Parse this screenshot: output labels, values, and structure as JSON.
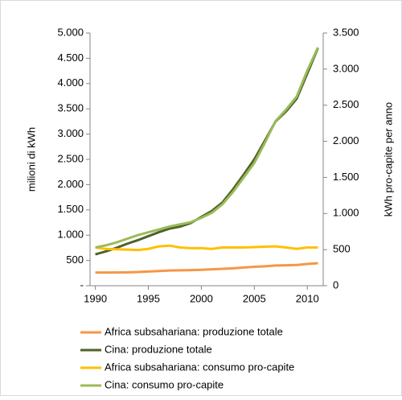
{
  "chart_data": {
    "type": "line",
    "x": [
      1990,
      1991,
      1992,
      1993,
      1994,
      1995,
      1996,
      1997,
      1998,
      1999,
      2000,
      2001,
      2002,
      2003,
      2004,
      2005,
      2006,
      2007,
      2008,
      2009,
      2010,
      2011
    ],
    "xlim": [
      1989.5,
      2011.5
    ],
    "xticks": [
      1990,
      1995,
      2000,
      2005,
      2010
    ],
    "ylabel": "milioni di kWh",
    "y2label": "kWh pro-capite per anno",
    "ylim": [
      0,
      5000
    ],
    "yticks": [
      {
        "value": 0,
        "label": "-"
      },
      500,
      {
        "value": 1000,
        "label": "1.000"
      },
      {
        "value": 1500,
        "label": "1.500"
      },
      {
        "value": 2000,
        "label": "2.000"
      },
      {
        "value": 2500,
        "label": "2.500"
      },
      {
        "value": 3000,
        "label": "3.000"
      },
      {
        "value": 3500,
        "label": "3.500"
      },
      {
        "value": 4000,
        "label": "4.000"
      },
      {
        "value": 4500,
        "label": "4.500"
      },
      {
        "value": 5000,
        "label": "5.000"
      }
    ],
    "y2lim": [
      0,
      3500
    ],
    "y2ticks": [
      0,
      500,
      {
        "value": 1000,
        "label": "1.000"
      },
      {
        "value": 1500,
        "label": "1.500"
      },
      {
        "value": 2000,
        "label": "2.000"
      },
      {
        "value": 2500,
        "label": "2.500"
      },
      {
        "value": 3000,
        "label": "3.000"
      },
      {
        "value": 3500,
        "label": "3.500"
      }
    ],
    "series": [
      {
        "name": "Africa subsahariana: produzione totale",
        "color": "#f79646",
        "values": [
          260,
          260,
          262,
          265,
          270,
          280,
          290,
          300,
          305,
          308,
          315,
          325,
          335,
          345,
          360,
          375,
          385,
          400,
          405,
          410,
          430,
          445
        ]
      },
      {
        "name": "Cina: produzione totale",
        "color": "#4f6228",
        "values": [
          620,
          680,
          750,
          830,
          900,
          980,
          1060,
          1130,
          1170,
          1240,
          1360,
          1480,
          1650,
          1910,
          2200,
          2500,
          2870,
          3250,
          3450,
          3700,
          4200,
          4700
        ]
      },
      {
        "name": "Africa subsahariana: consumo pro-capite",
        "color": "#ffc000",
        "axis": "y2",
        "values": [
          530,
          510,
          505,
          500,
          495,
          510,
          545,
          555,
          530,
          520,
          520,
          510,
          530,
          530,
          530,
          535,
          540,
          545,
          530,
          510,
          530,
          530
        ]
      },
      {
        "name": "Cina: consumo pro-capite",
        "color": "#9bbb59",
        "axis": "y2",
        "values": [
          530,
          560,
          600,
          650,
          700,
          740,
          780,
          820,
          850,
          880,
          940,
          1010,
          1130,
          1300,
          1500,
          1700,
          1980,
          2280,
          2440,
          2620,
          2980,
          3300
        ]
      }
    ]
  }
}
